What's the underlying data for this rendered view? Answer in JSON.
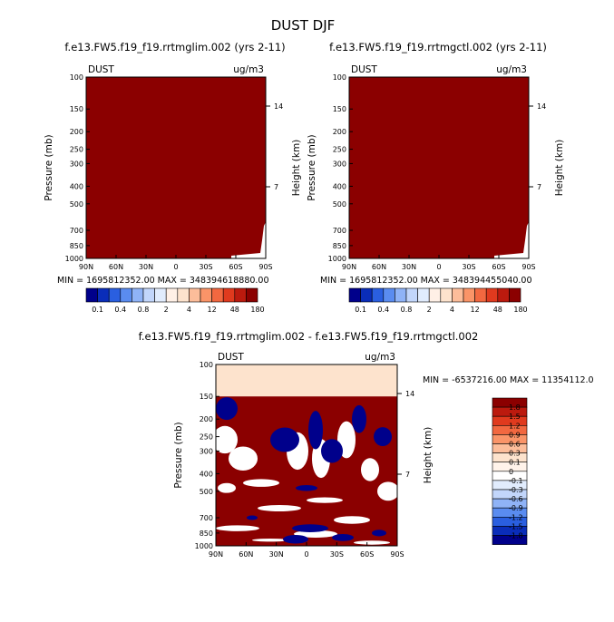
{
  "figure": {
    "title": "DUST DJF",
    "colors": {
      "sat": "#8b0000",
      "white": "#ffffff",
      "peach": "#fde3cd",
      "blue": "#00008b"
    }
  },
  "chart_data": [
    {
      "type": "heatmap",
      "title": "f.e13.FW5.f19_f19.rrtmglim.002 (yrs 2-11)",
      "corner_left": "DUST",
      "corner_right": "ug/m3",
      "ylabel": "Pressure (mb)",
      "ylabel_right": "Height (km)",
      "x_ticks": [
        "90N",
        "60N",
        "30N",
        "0",
        "30S",
        "60S",
        "90S"
      ],
      "y_ticks": [
        "100",
        "150",
        "200",
        "250",
        "300",
        "400",
        "500",
        "700",
        "850",
        "1000"
      ],
      "y_ticks_right": [
        "14",
        "7"
      ],
      "ylim": [
        1000,
        100
      ],
      "stats": "MIN = 1695812352.00   MAX = 348394618880.00",
      "field_description": "saturated at top color (>180) across the domain",
      "colorbar_labels": [
        "0.1",
        "0.4",
        "0.8",
        "2",
        "4",
        "12",
        "48",
        "180"
      ],
      "colorbar_colors": [
        "#00008b",
        "#0a2db9",
        "#2a5fe0",
        "#5a8cf0",
        "#8fb3f7",
        "#c2d6fb",
        "#e1ecfd",
        "#fff0e6",
        "#fde3cd",
        "#fcbd9a",
        "#fa9468",
        "#f26840",
        "#e03a1e",
        "#bb1a0e",
        "#8b0000"
      ]
    },
    {
      "type": "heatmap",
      "title": "f.e13.FW5.f19_f19.rrtmgctl.002 (yrs 2-11)",
      "corner_left": "DUST",
      "corner_right": "ug/m3",
      "ylabel": "Pressure (mb)",
      "ylabel_right": "Height (km)",
      "x_ticks": [
        "90N",
        "60N",
        "30N",
        "0",
        "30S",
        "60S",
        "90S"
      ],
      "y_ticks": [
        "100",
        "150",
        "200",
        "250",
        "300",
        "400",
        "500",
        "700",
        "850",
        "1000"
      ],
      "y_ticks_right": [
        "14",
        "7"
      ],
      "ylim": [
        1000,
        100
      ],
      "stats": "MIN = 1695812352.00   MAX = 348394455040.00",
      "field_description": "saturated at top color (>180) across the domain",
      "colorbar_labels": [
        "0.1",
        "0.4",
        "0.8",
        "2",
        "4",
        "12",
        "48",
        "180"
      ],
      "colorbar_colors": [
        "#00008b",
        "#0a2db9",
        "#2a5fe0",
        "#5a8cf0",
        "#8fb3f7",
        "#c2d6fb",
        "#e1ecfd",
        "#fff0e6",
        "#fde3cd",
        "#fcbd9a",
        "#fa9468",
        "#f26840",
        "#e03a1e",
        "#bb1a0e",
        "#8b0000"
      ]
    },
    {
      "type": "heatmap",
      "title": "f.e13.FW5.f19_f19.rrtmglim.002 - f.e13.FW5.f19_f19.rrtmgctl.002",
      "corner_left": "DUST",
      "corner_right": "ug/m3",
      "ylabel": "Pressure (mb)",
      "ylabel_right": "Height (km)",
      "x_ticks": [
        "90N",
        "60N",
        "30N",
        "0",
        "30S",
        "60S",
        "90S"
      ],
      "y_ticks": [
        "100",
        "150",
        "200",
        "250",
        "300",
        "400",
        "500",
        "700",
        "850",
        "1000"
      ],
      "y_ticks_right": [
        "14",
        "7"
      ],
      "ylim": [
        1000,
        100
      ],
      "stats": "MIN = -6537216.00   MAX = 11354112.0",
      "field_description": "difference field: light peach (0 to 0.1) above 150 mb; alternating dark red (>1.8) and dark blue (<-1.8) bands with white (near zero) regions below",
      "colorbar_labels": [
        "1.8",
        "1.5",
        "1.2",
        "0.9",
        "0.6",
        "0.3",
        "0.1",
        "0",
        "-0.1",
        "-0.3",
        "-0.6",
        "-0.9",
        "-1.2",
        "-1.5",
        "-1.8"
      ],
      "colorbar_colors": [
        "#8b0000",
        "#bb1a0e",
        "#e03a1e",
        "#f26840",
        "#fa9468",
        "#fcbd9a",
        "#fde3cd",
        "#fff3ea",
        "#ffffff",
        "#e1ecfd",
        "#c2d6fb",
        "#8fb3f7",
        "#5a8cf0",
        "#2a5fe0",
        "#0a2db9",
        "#00008b"
      ]
    }
  ]
}
